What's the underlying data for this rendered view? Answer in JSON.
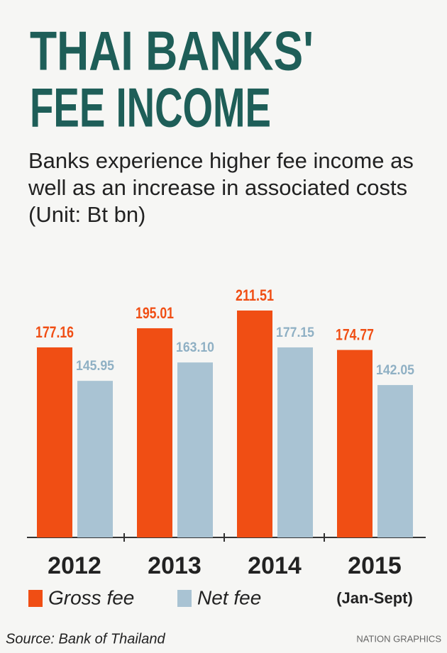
{
  "chart_data": {
    "type": "bar",
    "title_lines": [
      "THAI BANKS'",
      "FEE INCOME"
    ],
    "subtitle": "Banks experience higher fee income as well as an increase in associated costs (Unit: Bt bn)",
    "categories": [
      "2012",
      "2013",
      "2014",
      "2015"
    ],
    "annotation": "(Jan-Sept)",
    "series": [
      {
        "name": "Gross fee",
        "color": "#f04e14",
        "label_color": "#f04e14",
        "values": [
          177.16,
          195.01,
          211.51,
          174.77
        ],
        "value_labels": [
          "177.16",
          "195.01",
          "211.51",
          "174.77"
        ]
      },
      {
        "name": "Net fee",
        "color": "#a9c3d3",
        "label_color": "#8fb0c4",
        "values": [
          145.95,
          163.1,
          177.15,
          142.05
        ],
        "value_labels": [
          "145.95",
          "163.10",
          "177.15",
          "142.05"
        ]
      }
    ],
    "source": "Source: Bank of Thailand",
    "credit": "NATION GRAPHICS"
  }
}
